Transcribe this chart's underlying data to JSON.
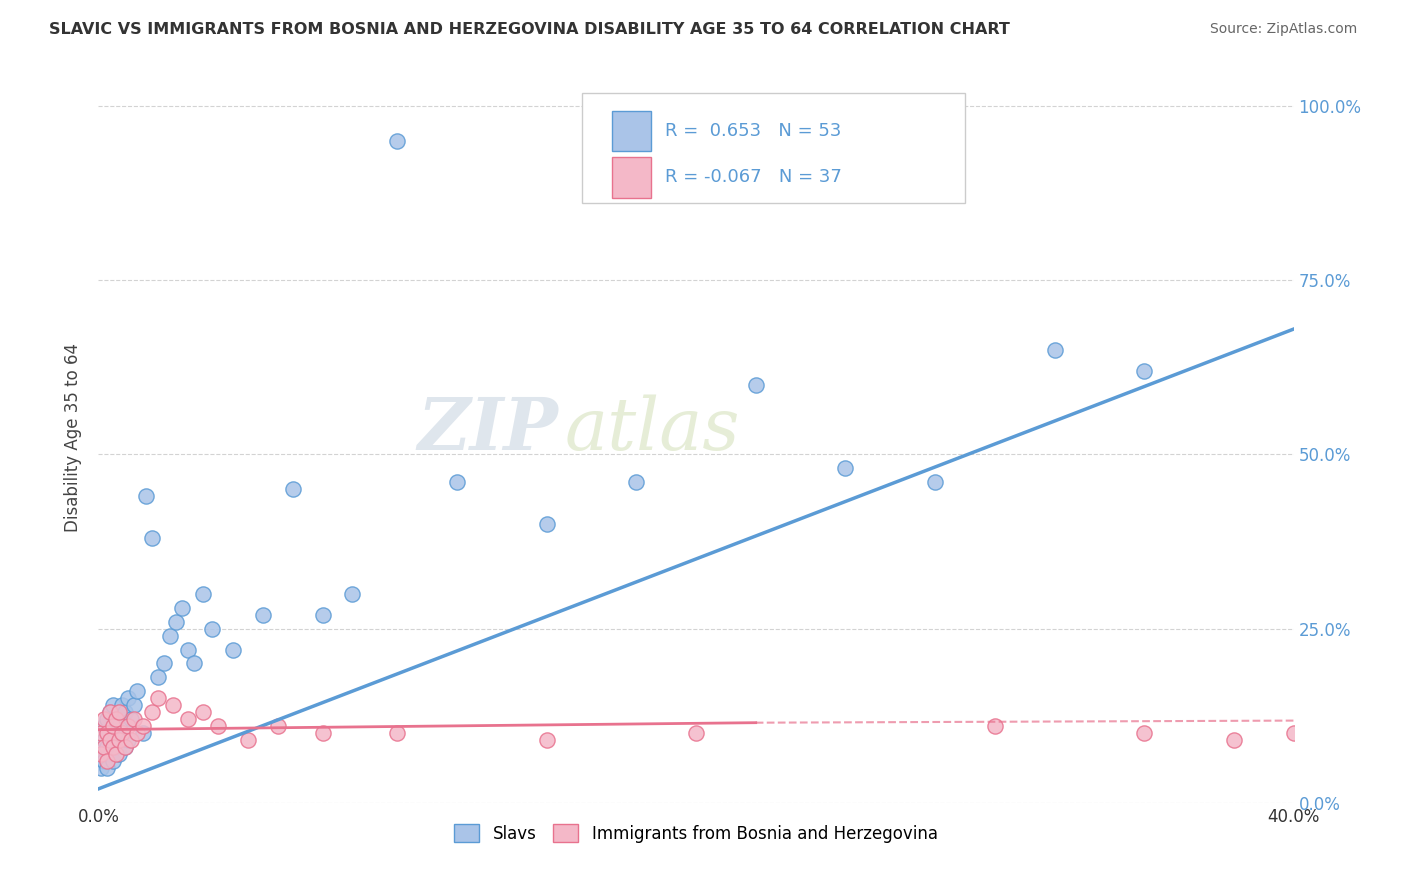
{
  "title": "SLAVIC VS IMMIGRANTS FROM BOSNIA AND HERZEGOVINA DISABILITY AGE 35 TO 64 CORRELATION CHART",
  "source": "Source: ZipAtlas.com",
  "ylabel": "Disability Age 35 to 64",
  "xlim": [
    0.0,
    0.4
  ],
  "ylim": [
    0.0,
    1.05
  ],
  "xtick_positions": [
    0.0,
    0.1,
    0.2,
    0.3,
    0.4
  ],
  "xtick_labels": [
    "0.0%",
    "",
    "",
    "",
    "40.0%"
  ],
  "ytick_vals": [
    0.0,
    0.25,
    0.5,
    0.75,
    1.0
  ],
  "ytick_labels_right": [
    "0.0%",
    "25.0%",
    "50.0%",
    "75.0%",
    "100.0%"
  ],
  "legend_r1_val": "0.653",
  "legend_r1_n": "53",
  "legend_r2_val": "-0.067",
  "legend_r2_n": "37",
  "color_slavs_fill": "#aac4e8",
  "color_slavs_edge": "#5b9bd5",
  "color_bosnia_fill": "#f4b8c8",
  "color_bosnia_edge": "#e8728e",
  "line_color_slavs": "#5b9bd5",
  "line_color_bosnia": "#e8728e",
  "watermark_text": "ZIPatlas",
  "legend_entries": [
    "Slavs",
    "Immigrants from Bosnia and Herzegovina"
  ],
  "background_color": "#ffffff",
  "grid_color": "#c8c8c8",
  "title_color": "#333333",
  "source_color": "#666666",
  "tick_label_color": "#5b9bd5",
  "slavs_x": [
    0.001,
    0.001,
    0.002,
    0.002,
    0.002,
    0.003,
    0.003,
    0.003,
    0.004,
    0.004,
    0.004,
    0.005,
    0.005,
    0.005,
    0.006,
    0.006,
    0.007,
    0.007,
    0.008,
    0.008,
    0.009,
    0.009,
    0.01,
    0.01,
    0.011,
    0.012,
    0.013,
    0.015,
    0.016,
    0.018,
    0.02,
    0.022,
    0.024,
    0.026,
    0.028,
    0.03,
    0.032,
    0.035,
    0.038,
    0.045,
    0.055,
    0.065,
    0.075,
    0.085,
    0.1,
    0.12,
    0.15,
    0.18,
    0.22,
    0.25,
    0.28,
    0.32,
    0.35
  ],
  "slavs_y": [
    0.05,
    0.07,
    0.06,
    0.09,
    0.11,
    0.05,
    0.08,
    0.12,
    0.07,
    0.1,
    0.13,
    0.06,
    0.09,
    0.14,
    0.08,
    0.12,
    0.07,
    0.11,
    0.1,
    0.14,
    0.08,
    0.13,
    0.09,
    0.15,
    0.12,
    0.14,
    0.16,
    0.1,
    0.44,
    0.38,
    0.18,
    0.2,
    0.24,
    0.26,
    0.28,
    0.22,
    0.2,
    0.3,
    0.25,
    0.22,
    0.27,
    0.45,
    0.27,
    0.3,
    0.95,
    0.46,
    0.4,
    0.46,
    0.6,
    0.48,
    0.46,
    0.65,
    0.62
  ],
  "bosnia_x": [
    0.001,
    0.001,
    0.002,
    0.002,
    0.003,
    0.003,
    0.004,
    0.004,
    0.005,
    0.005,
    0.006,
    0.006,
    0.007,
    0.007,
    0.008,
    0.009,
    0.01,
    0.011,
    0.012,
    0.013,
    0.015,
    0.018,
    0.02,
    0.025,
    0.03,
    0.035,
    0.04,
    0.05,
    0.06,
    0.075,
    0.1,
    0.15,
    0.2,
    0.3,
    0.35,
    0.38,
    0.4
  ],
  "bosnia_y": [
    0.07,
    0.1,
    0.08,
    0.12,
    0.06,
    0.1,
    0.09,
    0.13,
    0.08,
    0.11,
    0.07,
    0.12,
    0.09,
    0.13,
    0.1,
    0.08,
    0.11,
    0.09,
    0.12,
    0.1,
    0.11,
    0.13,
    0.15,
    0.14,
    0.12,
    0.13,
    0.11,
    0.09,
    0.11,
    0.1,
    0.1,
    0.09,
    0.1,
    0.11,
    0.1,
    0.09,
    0.1
  ],
  "slavs_line_x0": 0.0,
  "slavs_line_y0": 0.02,
  "slavs_line_x1": 0.4,
  "slavs_line_y1": 0.68,
  "bosnia_line_solid_x0": 0.0,
  "bosnia_line_solid_y0": 0.105,
  "bosnia_line_solid_x1": 0.22,
  "bosnia_line_solid_y1": 0.115,
  "bosnia_line_dash_x0": 0.22,
  "bosnia_line_dash_y0": 0.115,
  "bosnia_line_dash_x1": 0.4,
  "bosnia_line_dash_y1": 0.118
}
